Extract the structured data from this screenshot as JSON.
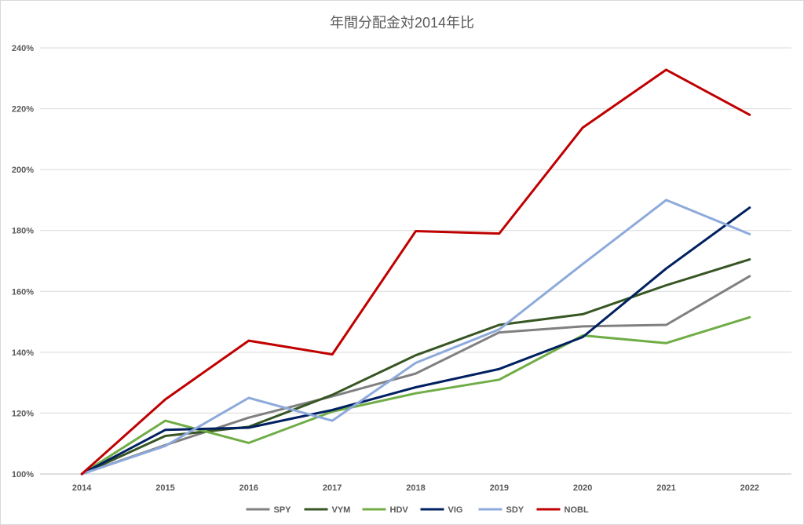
{
  "chart_data": {
    "type": "line",
    "title": "年間分配金対2014年比",
    "xlabel": "",
    "ylabel": "",
    "categories": [
      "2014",
      "2015",
      "2016",
      "2017",
      "2018",
      "2019",
      "2020",
      "2021",
      "2022"
    ],
    "ylim": [
      100,
      240
    ],
    "y_ticks": [
      100,
      120,
      140,
      160,
      180,
      200,
      220,
      240
    ],
    "y_tick_labels": [
      "100%",
      "120%",
      "140%",
      "160%",
      "180%",
      "200%",
      "220%",
      "240%"
    ],
    "grid": true,
    "legend_position": "bottom",
    "series": [
      {
        "name": "SPY",
        "color": "#808080",
        "values": [
          100,
          109.5,
          118.5,
          125.5,
          133,
          146.5,
          148.5,
          149,
          165
        ]
      },
      {
        "name": "VYM",
        "color": "#375623",
        "values": [
          100,
          112.5,
          115.5,
          126,
          139,
          149,
          152.5,
          162,
          170.5
        ]
      },
      {
        "name": "HDV",
        "color": "#70ad47",
        "values": [
          100,
          117.5,
          110.2,
          120.5,
          126.5,
          131,
          145.5,
          143,
          151.5
        ]
      },
      {
        "name": "VIG",
        "color": "#002060",
        "values": [
          100,
          114.5,
          115.2,
          121,
          128.5,
          134.5,
          145,
          167.5,
          187.5
        ]
      },
      {
        "name": "SDY",
        "color": "#8eaadb",
        "values": [
          100,
          109.2,
          125,
          117.5,
          136.5,
          147.5,
          169,
          190,
          178.8
        ]
      },
      {
        "name": "NOBL",
        "color": "#c00000",
        "values": [
          100,
          124.5,
          143.8,
          139.3,
          179.8,
          179,
          213.8,
          232.8,
          218
        ]
      }
    ]
  }
}
